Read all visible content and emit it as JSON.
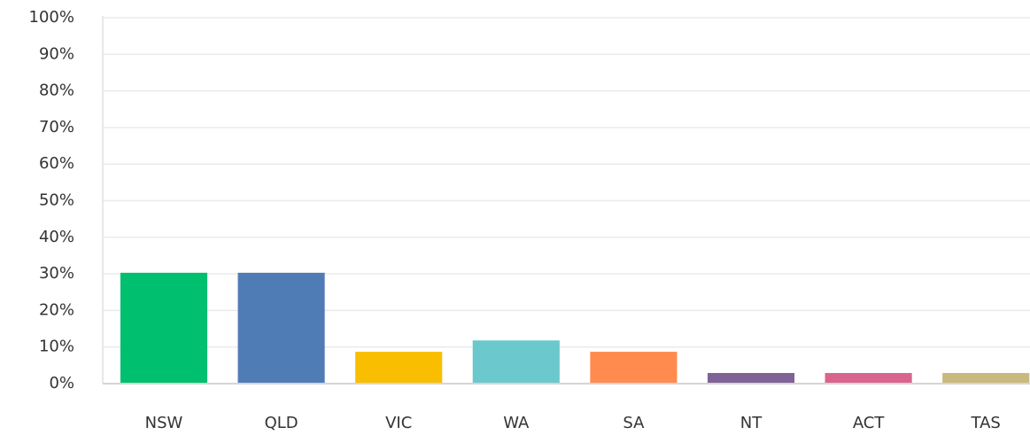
{
  "chart_data": {
    "type": "bar",
    "categories": [
      "NSW",
      "QLD",
      "VIC",
      "WA",
      "SA",
      "NT",
      "ACT",
      "TAS"
    ],
    "values": [
      30.3,
      30.3,
      8.7,
      11.8,
      8.7,
      2.9,
      2.9,
      2.9
    ],
    "colors": [
      "#00bf6f",
      "#507cb6",
      "#f9be00",
      "#6bc8cd",
      "#ff8b4f",
      "#7f6296",
      "#d9658f",
      "#c9b97d"
    ],
    "ylim": [
      0,
      100
    ],
    "yticks": [
      {
        "value": 0,
        "label": "0%"
      },
      {
        "value": 10,
        "label": "10%"
      },
      {
        "value": 20,
        "label": "20%"
      },
      {
        "value": 30,
        "label": "30%"
      },
      {
        "value": 40,
        "label": "40%"
      },
      {
        "value": 50,
        "label": "50%"
      },
      {
        "value": 60,
        "label": "60%"
      },
      {
        "value": 70,
        "label": "70%"
      },
      {
        "value": 80,
        "label": "80%"
      },
      {
        "value": 90,
        "label": "90%"
      },
      {
        "value": 100,
        "label": "100%"
      }
    ],
    "grid": true
  }
}
